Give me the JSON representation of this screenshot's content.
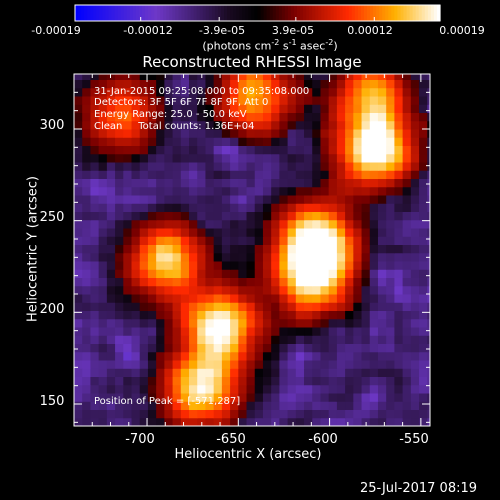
{
  "colorbar": {
    "ticks": [
      "-0.00019",
      "-0.00012",
      "-3.9e-05",
      "3.9e-05",
      "0.00012",
      "0.00019"
    ],
    "unit_main": "(photons cm",
    "unit_sup1": "-2",
    "unit_mid": " s",
    "unit_sup2": "-1",
    "unit_mid2": " asec",
    "unit_sup3": "-2",
    "unit_end": ")",
    "colors": [
      "#0000ff",
      "#6e38c8",
      "#1a0a22",
      "#000000",
      "#7a0000",
      "#ff2a00",
      "#ffb000",
      "#ffffff"
    ]
  },
  "chart_data": {
    "type": "heatmap",
    "title": "Reconstructed RHESSI Image",
    "xlabel": "Heliocentric X (arcsec)",
    "ylabel": "Heliocentric Y (arcsec)",
    "xlim": [
      -740,
      -545
    ],
    "ylim": [
      138,
      330
    ],
    "x_ticks": [
      -700,
      -650,
      -600,
      -550
    ],
    "y_ticks": [
      150,
      200,
      250,
      300
    ],
    "annotations": [
      "31-Jan-2015 09:25:08.000 to 09:35:08.000",
      "Detectors: 3F 5F 6F 7F 8F 9F, Att 0",
      "Energy Range: 25.0 - 50.0 keV",
      "Clean     Total counts: 1.36E+04"
    ],
    "peak_label": "Position of Peak = [-571,287]",
    "peak": [
      -571,
      287
    ],
    "sources": [
      {
        "x": -575,
        "y": 290,
        "value": 1.0
      },
      {
        "x": -607,
        "y": 240,
        "value": 0.92
      },
      {
        "x": -610,
        "y": 220,
        "value": 0.85
      },
      {
        "x": -690,
        "y": 228,
        "value": 0.8
      },
      {
        "x": -660,
        "y": 192,
        "value": 0.95
      },
      {
        "x": -670,
        "y": 158,
        "value": 0.85
      },
      {
        "x": -640,
        "y": 318,
        "value": 0.7
      },
      {
        "x": -715,
        "y": 308,
        "value": 0.55
      },
      {
        "x": -578,
        "y": 320,
        "value": 0.6
      }
    ]
  },
  "footer": {
    "timestamp": "25-Jul-2017 08:19"
  }
}
